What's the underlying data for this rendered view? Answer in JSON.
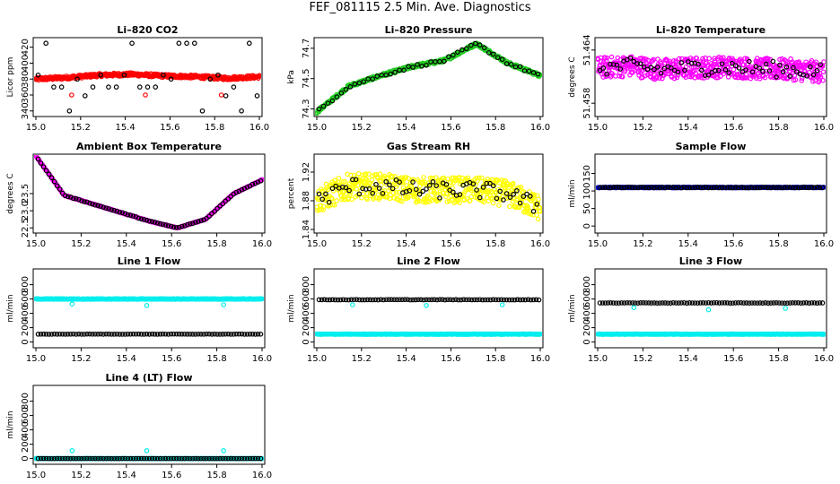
{
  "page_title": "FEF_081115  2.5 Min. Ave. Diagnostics",
  "colors": {
    "black": "#000000",
    "red": "#ff0000",
    "green": "#22cc22",
    "magenta": "#ff00ff",
    "yellow": "#ffff00",
    "blue": "#0000cc",
    "cyan": "#00eeee"
  },
  "chart_data": [
    {
      "type": "scatter",
      "title": "Li–820 CO2",
      "ylabel": "Licor ppm",
      "xlim": [
        15.0,
        16.0
      ],
      "ylim": [
        333,
        432
      ],
      "xticks": [
        "15.0",
        "15.2",
        "15.4",
        "15.6",
        "15.8",
        "16.0"
      ],
      "yticks": [
        "340",
        "360",
        "380",
        "400",
        "420"
      ],
      "series": [
        {
          "color": "#ff0000",
          "pattern": "band",
          "x_range": [
            15.0,
            16.0
          ],
          "y_profile": [
            380,
            382,
            385,
            386,
            384,
            383,
            381,
            383
          ],
          "noise": 2
        },
        {
          "color": "#000000",
          "pattern": "sparse",
          "x_step": 0.035,
          "y_levels": [
            340,
            359,
            370,
            380,
            385,
            425
          ],
          "noise": 0
        },
        {
          "color": "#ff0000",
          "pattern": "points",
          "x": [
            15.16,
            15.49,
            15.83
          ],
          "y": [
            360,
            360,
            360
          ]
        }
      ]
    },
    {
      "type": "scatter",
      "title": "Li–820 Pressure",
      "ylabel": "kPa",
      "xlim": [
        15.0,
        16.0
      ],
      "ylim": [
        74.25,
        74.77
      ],
      "xticks": [
        "15.0",
        "15.2",
        "15.4",
        "15.6",
        "15.8",
        "16.0"
      ],
      "yticks": [
        "74.3",
        "74.5",
        "74.7"
      ],
      "series": [
        {
          "color": "#22cc22",
          "pattern": "band",
          "x_range": [
            15.0,
            16.0
          ],
          "y_profile": [
            74.28,
            74.45,
            74.52,
            74.58,
            74.62,
            74.73,
            74.6,
            74.52
          ],
          "noise": 0.01
        },
        {
          "color": "#000000",
          "pattern": "sparse",
          "x_step": 0.02,
          "y_profile": [
            74.28,
            74.45,
            74.52,
            74.58,
            74.62,
            74.73,
            74.6,
            74.52
          ],
          "noise": 0.01
        }
      ]
    },
    {
      "type": "scatter",
      "title": "Li–820 Temperature",
      "ylabel": "degrees C",
      "xlim": [
        15.0,
        16.0
      ],
      "ylim": [
        51.4565,
        51.4654
      ],
      "xticks": [
        "15.0",
        "15.2",
        "15.4",
        "15.6",
        "15.8",
        "16.0"
      ],
      "yticks": [
        "51.458",
        "51.464"
      ],
      "series": [
        {
          "color": "#ff00ff",
          "pattern": "cloud",
          "x_range": [
            15.0,
            16.0
          ],
          "y_profile": [
            51.462,
            51.4622,
            51.4618,
            51.462,
            51.4621,
            51.4619,
            51.4618,
            51.4615
          ],
          "noise": 0.0012
        },
        {
          "color": "#000000",
          "pattern": "sparse",
          "x_step": 0.015,
          "y_profile": [
            51.462,
            51.4622,
            51.4618,
            51.462,
            51.4621,
            51.4619,
            51.4618,
            51.4615
          ],
          "noise": 0.0009
        }
      ]
    },
    {
      "type": "scatter",
      "title": "Ambient Box Temperature",
      "ylabel": "degrees C",
      "xlim": [
        15.0,
        16.0
      ],
      "ylim": [
        22.35,
        24.65
      ],
      "xticks": [
        "15.0",
        "15.2",
        "15.4",
        "15.6",
        "15.8",
        "16.0"
      ],
      "yticks": [
        "22.5",
        "23.0",
        "23.5"
      ],
      "series": [
        {
          "color": "#ff00ff",
          "pattern": "band",
          "x_range": [
            15.0,
            16.0
          ],
          "y_profile": [
            24.6,
            23.45,
            23.2,
            22.95,
            22.7,
            22.5,
            22.75,
            23.5,
            23.9
          ],
          "noise": 0.01
        },
        {
          "color": "#000000",
          "pattern": "sparse",
          "x_step": 0.012,
          "y_profile": [
            24.6,
            23.45,
            23.2,
            22.95,
            22.7,
            22.5,
            22.75,
            23.5,
            23.9
          ],
          "noise": 0.01
        }
      ]
    },
    {
      "type": "scatter",
      "title": "Gas Stream RH",
      "ylabel": "percent",
      "xlim": [
        15.0,
        16.0
      ],
      "ylim": [
        1.835,
        1.945
      ],
      "xticks": [
        "15.0",
        "15.2",
        "15.4",
        "15.6",
        "15.8",
        "16.0"
      ],
      "yticks": [
        "1.84",
        "1.88",
        "1.92"
      ],
      "series": [
        {
          "color": "#ffff00",
          "pattern": "cloud",
          "x_range": [
            15.0,
            16.0
          ],
          "y_profile": [
            1.88,
            1.9,
            1.9,
            1.895,
            1.895,
            1.895,
            1.89,
            1.87
          ],
          "noise": 0.018
        },
        {
          "color": "#000000",
          "pattern": "sparse",
          "x_step": 0.015,
          "y_profile": [
            1.88,
            1.9,
            1.9,
            1.895,
            1.895,
            1.895,
            1.89,
            1.87
          ],
          "noise": 0.012
        }
      ]
    },
    {
      "type": "scatter",
      "title": "Sample Flow",
      "ylabel": "ml/min",
      "xlim": [
        15.0,
        16.0
      ],
      "ylim": [
        -20,
        205
      ],
      "xticks": [
        "15.0",
        "15.2",
        "15.4",
        "15.6",
        "15.8",
        "16.0"
      ],
      "yticks": [
        "0",
        "50",
        "100",
        "150"
      ],
      "series": [
        {
          "color": "#0000cc",
          "pattern": "band",
          "x_range": [
            15.0,
            16.0
          ],
          "y_profile": [
            110,
            110
          ],
          "noise": 1
        },
        {
          "color": "#000000",
          "pattern": "sparse",
          "x_step": 0.012,
          "y_profile": [
            110,
            110
          ],
          "noise": 1
        }
      ]
    },
    {
      "type": "scatter",
      "title": "Line 1 Flow",
      "ylabel": "ml/min",
      "xlim": [
        15.0,
        16.0
      ],
      "ylim": [
        -80,
        1020
      ],
      "xticks": [
        "15.0",
        "15.2",
        "15.4",
        "15.6",
        "15.8",
        "16.0"
      ],
      "yticks": [
        "0",
        "200",
        "400",
        "600",
        "800"
      ],
      "series": [
        {
          "color": "#00eeee",
          "pattern": "band",
          "x_range": [
            15.0,
            16.0
          ],
          "y_profile": [
            600,
            600
          ],
          "noise": 4
        },
        {
          "color": "#000000",
          "pattern": "sparse",
          "x_step": 0.012,
          "y_profile": [
            110,
            110
          ],
          "noise": 2
        },
        {
          "color": "#00eeee",
          "pattern": "points",
          "x": [
            15.16,
            15.49,
            15.83
          ],
          "y": [
            530,
            510,
            520
          ]
        }
      ]
    },
    {
      "type": "scatter",
      "title": "Line 2 Flow",
      "ylabel": "ml/min",
      "xlim": [
        15.0,
        16.0
      ],
      "ylim": [
        -80,
        1020
      ],
      "xticks": [
        "15.0",
        "15.2",
        "15.4",
        "15.6",
        "15.8",
        "16.0"
      ],
      "yticks": [
        "0",
        "200",
        "400",
        "600",
        "800"
      ],
      "series": [
        {
          "color": "#00eeee",
          "pattern": "band",
          "x_range": [
            15.0,
            16.0
          ],
          "y_profile": [
            110,
            110
          ],
          "noise": 3
        },
        {
          "color": "#000000",
          "pattern": "sparse",
          "x_step": 0.012,
          "y_profile": [
            590,
            590
          ],
          "noise": 3
        },
        {
          "color": "#00eeee",
          "pattern": "points",
          "x": [
            15.16,
            15.49,
            15.83
          ],
          "y": [
            520,
            510,
            520
          ]
        }
      ]
    },
    {
      "type": "scatter",
      "title": "Line 3 Flow",
      "ylabel": "ml/min",
      "xlim": [
        15.0,
        16.0
      ],
      "ylim": [
        -80,
        1020
      ],
      "xticks": [
        "15.0",
        "15.2",
        "15.4",
        "15.6",
        "15.8",
        "16.0"
      ],
      "yticks": [
        "0",
        "200",
        "400",
        "600",
        "800"
      ],
      "series": [
        {
          "color": "#00eeee",
          "pattern": "band",
          "x_range": [
            15.0,
            16.0
          ],
          "y_profile": [
            110,
            110
          ],
          "noise": 3
        },
        {
          "color": "#000000",
          "pattern": "sparse",
          "x_step": 0.012,
          "y_profile": [
            545,
            545
          ],
          "noise": 3
        },
        {
          "color": "#00eeee",
          "pattern": "points",
          "x": [
            15.16,
            15.49,
            15.83
          ],
          "y": [
            480,
            450,
            470
          ]
        }
      ]
    },
    {
      "type": "scatter",
      "title": "Line 4 (LT) Flow",
      "ylabel": "ml/min",
      "xlim": [
        15.0,
        16.0
      ],
      "ylim": [
        -80,
        1020
      ],
      "xticks": [
        "15.0",
        "15.2",
        "15.4",
        "15.6",
        "15.8",
        "16.0"
      ],
      "yticks": [
        "0",
        "200",
        "400",
        "600",
        "800"
      ],
      "series": [
        {
          "color": "#00eeee",
          "pattern": "band",
          "x_range": [
            15.0,
            16.0
          ],
          "y_profile": [
            0,
            0
          ],
          "noise": 1
        },
        {
          "color": "#000000",
          "pattern": "sparse",
          "x_step": 0.012,
          "y_profile": [
            0,
            0
          ],
          "noise": 1
        },
        {
          "color": "#00eeee",
          "pattern": "points",
          "x": [
            15.16,
            15.49,
            15.83
          ],
          "y": [
            110,
            110,
            110
          ]
        }
      ]
    }
  ]
}
